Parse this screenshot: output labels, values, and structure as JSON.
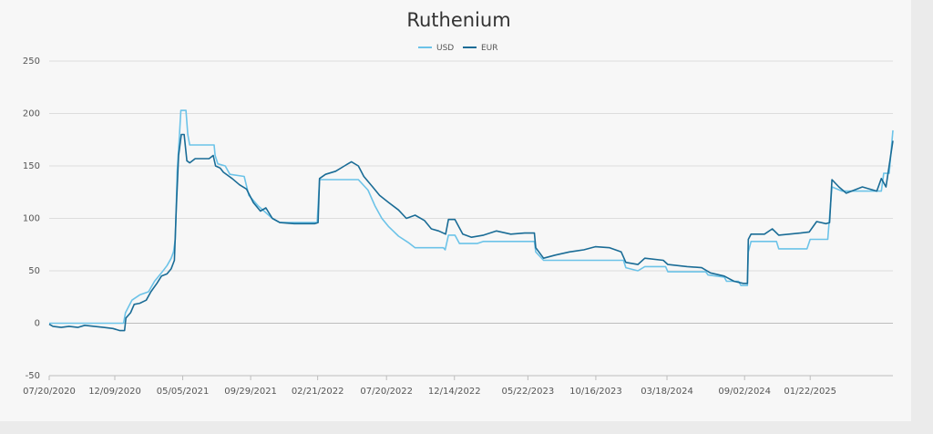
{
  "chart_data": {
    "type": "line",
    "title": "Ruthenium",
    "xlabel": "",
    "ylabel": "",
    "ylim": [
      -50,
      250
    ],
    "y_ticks": [
      -50,
      0,
      50,
      100,
      150,
      200,
      250
    ],
    "x_range": [
      "2020-07-20",
      "2025-07-20"
    ],
    "x_tick_labels": [
      "07/20/2020",
      "12/09/2020",
      "05/05/2021",
      "09/29/2021",
      "02/21/2022",
      "07/20/2022",
      "12/14/2022",
      "05/22/2023",
      "10/16/2023",
      "03/18/2024",
      "09/02/2024",
      "01/22/2025"
    ],
    "x_tick_dates": [
      "2020-07-20",
      "2020-12-09",
      "2021-05-05",
      "2021-09-29",
      "2022-02-21",
      "2022-07-20",
      "2022-12-14",
      "2023-05-22",
      "2023-10-16",
      "2024-03-18",
      "2024-09-02",
      "2025-01-22"
    ],
    "grid": true,
    "legend_position": "top-center",
    "series": [
      {
        "name": "USD",
        "color": "#6cc3e8",
        "points": [
          [
            "2020-07-20",
            0
          ],
          [
            "2020-12-28",
            0
          ],
          [
            "2021-01-01",
            10
          ],
          [
            "2021-01-15",
            22
          ],
          [
            "2021-02-01",
            27
          ],
          [
            "2021-02-20",
            30
          ],
          [
            "2021-03-05",
            40
          ],
          [
            "2021-03-20",
            48
          ],
          [
            "2021-04-01",
            55
          ],
          [
            "2021-04-10",
            62
          ],
          [
            "2021-04-15",
            68
          ],
          [
            "2021-04-19",
            80
          ],
          [
            "2021-04-23",
            145
          ],
          [
            "2021-04-28",
            180
          ],
          [
            "2021-05-01",
            203
          ],
          [
            "2021-05-12",
            203
          ],
          [
            "2021-05-16",
            180
          ],
          [
            "2021-05-20",
            170
          ],
          [
            "2021-07-12",
            170
          ],
          [
            "2021-07-14",
            160
          ],
          [
            "2021-07-20",
            152
          ],
          [
            "2021-08-05",
            150
          ],
          [
            "2021-08-15",
            142
          ],
          [
            "2021-09-15",
            140
          ],
          [
            "2021-09-25",
            122
          ],
          [
            "2021-10-15",
            112
          ],
          [
            "2021-11-15",
            100
          ],
          [
            "2021-12-01",
            96
          ],
          [
            "2022-02-20",
            96
          ],
          [
            "2022-02-25",
            137
          ],
          [
            "2022-05-20",
            137
          ],
          [
            "2022-06-10",
            127
          ],
          [
            "2022-06-25",
            112
          ],
          [
            "2022-07-10",
            100
          ],
          [
            "2022-07-25",
            92
          ],
          [
            "2022-08-15",
            83
          ],
          [
            "2022-09-05",
            77
          ],
          [
            "2022-09-20",
            72
          ],
          [
            "2022-11-20",
            72
          ],
          [
            "2022-11-24",
            70
          ],
          [
            "2022-12-01",
            84
          ],
          [
            "2022-12-15",
            84
          ],
          [
            "2022-12-25",
            76
          ],
          [
            "2023-02-01",
            76
          ],
          [
            "2023-02-15",
            78
          ],
          [
            "2023-06-05",
            78
          ],
          [
            "2023-06-08",
            68
          ],
          [
            "2023-06-25",
            60
          ],
          [
            "2023-12-15",
            60
          ],
          [
            "2023-12-20",
            53
          ],
          [
            "2024-01-15",
            50
          ],
          [
            "2024-01-30",
            54
          ],
          [
            "2024-03-15",
            54
          ],
          [
            "2024-03-20",
            49
          ],
          [
            "2024-06-10",
            49
          ],
          [
            "2024-06-15",
            46
          ],
          [
            "2024-07-20",
            44
          ],
          [
            "2024-07-25",
            40
          ],
          [
            "2024-08-20",
            40
          ],
          [
            "2024-08-25",
            36
          ],
          [
            "2024-09-08",
            36
          ],
          [
            "2024-09-10",
            68
          ],
          [
            "2024-09-16",
            78
          ],
          [
            "2024-11-10",
            78
          ],
          [
            "2024-11-15",
            71
          ],
          [
            "2025-01-15",
            71
          ],
          [
            "2025-01-22",
            80
          ],
          [
            "2025-03-01",
            80
          ],
          [
            "2025-03-10",
            130
          ],
          [
            "2025-04-01",
            126
          ],
          [
            "2025-06-25",
            126
          ],
          [
            "2025-06-30",
            143
          ],
          [
            "2025-07-12",
            143
          ],
          [
            "2025-07-20",
            184
          ]
        ]
      },
      {
        "name": "EUR",
        "color": "#1a6c96",
        "points": [
          [
            "2020-07-20",
            -1
          ],
          [
            "2020-07-28",
            -3
          ],
          [
            "2020-08-15",
            -4
          ],
          [
            "2020-09-01",
            -3
          ],
          [
            "2020-09-20",
            -4
          ],
          [
            "2020-10-05",
            -2
          ],
          [
            "2020-10-25",
            -3
          ],
          [
            "2020-11-15",
            -4
          ],
          [
            "2020-12-05",
            -5
          ],
          [
            "2020-12-20",
            -7
          ],
          [
            "2020-12-30",
            -7
          ],
          [
            "2021-01-02",
            5
          ],
          [
            "2021-01-12",
            10
          ],
          [
            "2021-01-20",
            18
          ],
          [
            "2021-02-01",
            19
          ],
          [
            "2021-02-15",
            22
          ],
          [
            "2021-02-25",
            30
          ],
          [
            "2021-03-10",
            38
          ],
          [
            "2021-03-20",
            45
          ],
          [
            "2021-04-01",
            47
          ],
          [
            "2021-04-10",
            52
          ],
          [
            "2021-04-17",
            60
          ],
          [
            "2021-04-21",
            110
          ],
          [
            "2021-04-26",
            160
          ],
          [
            "2021-05-02",
            180
          ],
          [
            "2021-05-08",
            180
          ],
          [
            "2021-05-14",
            155
          ],
          [
            "2021-05-20",
            153
          ],
          [
            "2021-06-01",
            157
          ],
          [
            "2021-07-01",
            157
          ],
          [
            "2021-07-10",
            160
          ],
          [
            "2021-07-15",
            150
          ],
          [
            "2021-07-25",
            148
          ],
          [
            "2021-08-01",
            144
          ],
          [
            "2021-08-20",
            138
          ],
          [
            "2021-09-05",
            132
          ],
          [
            "2021-09-20",
            128
          ],
          [
            "2021-10-05",
            115
          ],
          [
            "2021-10-20",
            107
          ],
          [
            "2021-11-01",
            110
          ],
          [
            "2021-11-15",
            100
          ],
          [
            "2021-12-01",
            96
          ],
          [
            "2022-01-01",
            95
          ],
          [
            "2022-02-15",
            95
          ],
          [
            "2022-02-22",
            96
          ],
          [
            "2022-02-25",
            138
          ],
          [
            "2022-03-10",
            142
          ],
          [
            "2022-04-01",
            145
          ],
          [
            "2022-04-20",
            150
          ],
          [
            "2022-05-05",
            154
          ],
          [
            "2022-05-20",
            150
          ],
          [
            "2022-06-01",
            140
          ],
          [
            "2022-06-20",
            130
          ],
          [
            "2022-07-05",
            122
          ],
          [
            "2022-07-25",
            115
          ],
          [
            "2022-08-15",
            108
          ],
          [
            "2022-09-01",
            100
          ],
          [
            "2022-09-20",
            103
          ],
          [
            "2022-10-10",
            98
          ],
          [
            "2022-10-25",
            90
          ],
          [
            "2022-11-10",
            88
          ],
          [
            "2022-11-25",
            85
          ],
          [
            "2022-12-01",
            99
          ],
          [
            "2022-12-15",
            99
          ],
          [
            "2023-01-01",
            85
          ],
          [
            "2023-01-20",
            82
          ],
          [
            "2023-02-15",
            84
          ],
          [
            "2023-03-15",
            88
          ],
          [
            "2023-04-15",
            85
          ],
          [
            "2023-05-15",
            86
          ],
          [
            "2023-06-05",
            86
          ],
          [
            "2023-06-08",
            72
          ],
          [
            "2023-06-25",
            62
          ],
          [
            "2023-07-20",
            65
          ],
          [
            "2023-08-20",
            68
          ],
          [
            "2023-09-20",
            70
          ],
          [
            "2023-10-15",
            73
          ],
          [
            "2023-11-15",
            72
          ],
          [
            "2023-12-10",
            68
          ],
          [
            "2023-12-20",
            58
          ],
          [
            "2024-01-15",
            56
          ],
          [
            "2024-01-30",
            62
          ],
          [
            "2024-03-10",
            60
          ],
          [
            "2024-03-20",
            56
          ],
          [
            "2024-05-01",
            54
          ],
          [
            "2024-06-01",
            53
          ],
          [
            "2024-06-20",
            48
          ],
          [
            "2024-07-20",
            45
          ],
          [
            "2024-08-10",
            40
          ],
          [
            "2024-08-30",
            38
          ],
          [
            "2024-09-08",
            38
          ],
          [
            "2024-09-10",
            80
          ],
          [
            "2024-09-16",
            85
          ],
          [
            "2024-10-15",
            85
          ],
          [
            "2024-11-01",
            90
          ],
          [
            "2024-11-15",
            84
          ],
          [
            "2025-01-01",
            86
          ],
          [
            "2025-01-20",
            87
          ],
          [
            "2025-02-05",
            97
          ],
          [
            "2025-02-25",
            95
          ],
          [
            "2025-03-05",
            96
          ],
          [
            "2025-03-10",
            137
          ],
          [
            "2025-03-25",
            130
          ],
          [
            "2025-04-10",
            124
          ],
          [
            "2025-05-15",
            130
          ],
          [
            "2025-06-15",
            126
          ],
          [
            "2025-06-25",
            138
          ],
          [
            "2025-07-05",
            130
          ],
          [
            "2025-07-20",
            174
          ]
        ]
      }
    ]
  }
}
